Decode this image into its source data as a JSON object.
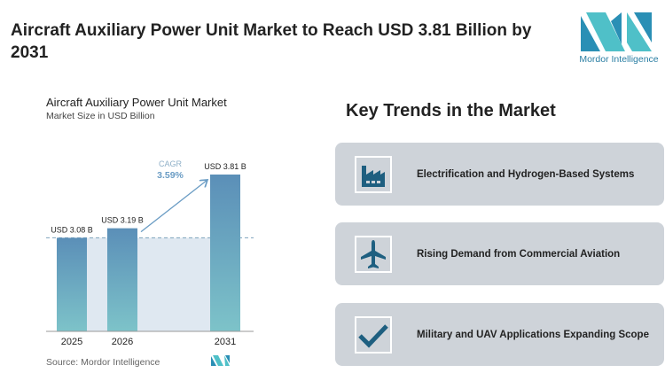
{
  "title": "Aircraft Auxiliary Power Unit Market to Reach USD 3.81 Billion by 2031",
  "brand": "Mordor Intelligence",
  "chart_data": {
    "type": "bar",
    "title": "Aircraft Auxiliary Power Unit Market",
    "subtitle": "Market Size in USD Billion",
    "categories": [
      "2025",
      "2026",
      "2031"
    ],
    "values": [
      3.08,
      3.19,
      3.81
    ],
    "data_labels": [
      "USD 3.08 B",
      "USD 3.19 B",
      "USD 3.81 B"
    ],
    "cagr_label": "CAGR",
    "cagr_value": "3.59%",
    "source": "Source:  Mordor Intelligence",
    "colors": {
      "bar_top": "#5b8fb8",
      "bar_bottom": "#7dc3c9",
      "arrow": "#6a9cc4"
    }
  },
  "trends": {
    "heading": "Key Trends in the Market",
    "items": [
      {
        "icon": "factory-icon",
        "label": "Electrification and Hydrogen-Based Systems"
      },
      {
        "icon": "airplane-icon",
        "label": "Rising Demand from Commercial Aviation"
      },
      {
        "icon": "checkmark-icon",
        "label": "Military and UAV Applications Expanding Scope"
      }
    ],
    "icon_color": "#1e5f80"
  }
}
